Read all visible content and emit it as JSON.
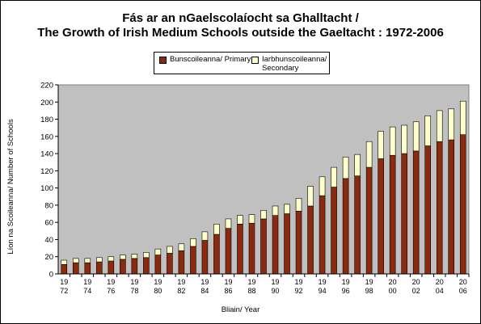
{
  "title_line1": "Fás ar an nGaelscolaíocht sa Ghalltacht /",
  "title_line2": "The Growth of Irish Medium Schools outside the Gaeltacht : 1972-2006",
  "colors": {
    "primary": "#8B2A0E",
    "secondary": "#FFFFCC",
    "plot_bg": "#C0C0C0"
  },
  "chart_data": {
    "type": "bar",
    "stacked": true,
    "xlabel": "Bliain/ Year",
    "ylabel": "Líon na Scoileanna/ Number of Schools",
    "ylim": [
      0,
      220
    ],
    "yticks": [
      0,
      20,
      40,
      60,
      80,
      100,
      120,
      140,
      160,
      180,
      200,
      220
    ],
    "grid": false,
    "legend_position": "top-center",
    "categories": [
      "1972",
      "1973",
      "1974",
      "1975",
      "1976",
      "1977",
      "1978",
      "1979",
      "1980",
      "1981",
      "1982",
      "1983",
      "1984",
      "1985",
      "1986",
      "1987",
      "1988",
      "1989",
      "1990",
      "1991",
      "1992",
      "1993",
      "1994",
      "1995",
      "1996",
      "1997",
      "1998",
      "1999",
      "2000",
      "2001",
      "2002",
      "2003",
      "2004",
      "2005",
      "2006"
    ],
    "tick_labels": [
      [
        "19",
        "72"
      ],
      [
        "",
        ""
      ],
      [
        "19",
        "74"
      ],
      [
        "",
        ""
      ],
      [
        "19",
        "76"
      ],
      [
        "",
        ""
      ],
      [
        "19",
        "78"
      ],
      [
        "",
        ""
      ],
      [
        "19",
        "80"
      ],
      [
        "",
        ""
      ],
      [
        "19",
        "82"
      ],
      [
        "",
        ""
      ],
      [
        "19",
        "84"
      ],
      [
        "",
        ""
      ],
      [
        "19",
        "86"
      ],
      [
        "",
        ""
      ],
      [
        "19",
        "88"
      ],
      [
        "",
        ""
      ],
      [
        "19",
        "90"
      ],
      [
        "",
        ""
      ],
      [
        "19",
        "92"
      ],
      [
        "",
        ""
      ],
      [
        "19",
        "94"
      ],
      [
        "",
        ""
      ],
      [
        "19",
        "96"
      ],
      [
        "",
        ""
      ],
      [
        "19",
        "98"
      ],
      [
        "",
        ""
      ],
      [
        "20",
        "00"
      ],
      [
        "",
        ""
      ],
      [
        "20",
        "02"
      ],
      [
        "",
        ""
      ],
      [
        "20",
        "04"
      ],
      [
        "",
        ""
      ],
      [
        "20",
        "06"
      ]
    ],
    "series": [
      {
        "name": "Bunscoileanna/ Primary",
        "values": [
          11,
          13,
          13,
          14,
          15,
          17,
          18,
          19,
          22,
          24,
          27,
          32,
          39,
          46,
          53,
          58,
          59,
          64,
          68,
          70,
          73,
          79,
          91,
          101,
          111,
          114,
          124,
          134,
          138,
          140,
          143,
          149,
          154,
          156,
          162
        ]
      },
      {
        "name": "Iarbhunscoileanna/\nSecondary",
        "values": [
          5,
          5,
          5,
          5,
          5,
          5,
          5,
          6,
          7,
          8,
          8,
          9,
          10,
          12,
          11,
          10,
          10,
          10,
          11,
          11,
          15,
          23,
          22,
          23,
          25,
          25,
          30,
          32,
          33,
          33,
          34,
          35,
          36,
          36,
          39
        ]
      }
    ]
  }
}
